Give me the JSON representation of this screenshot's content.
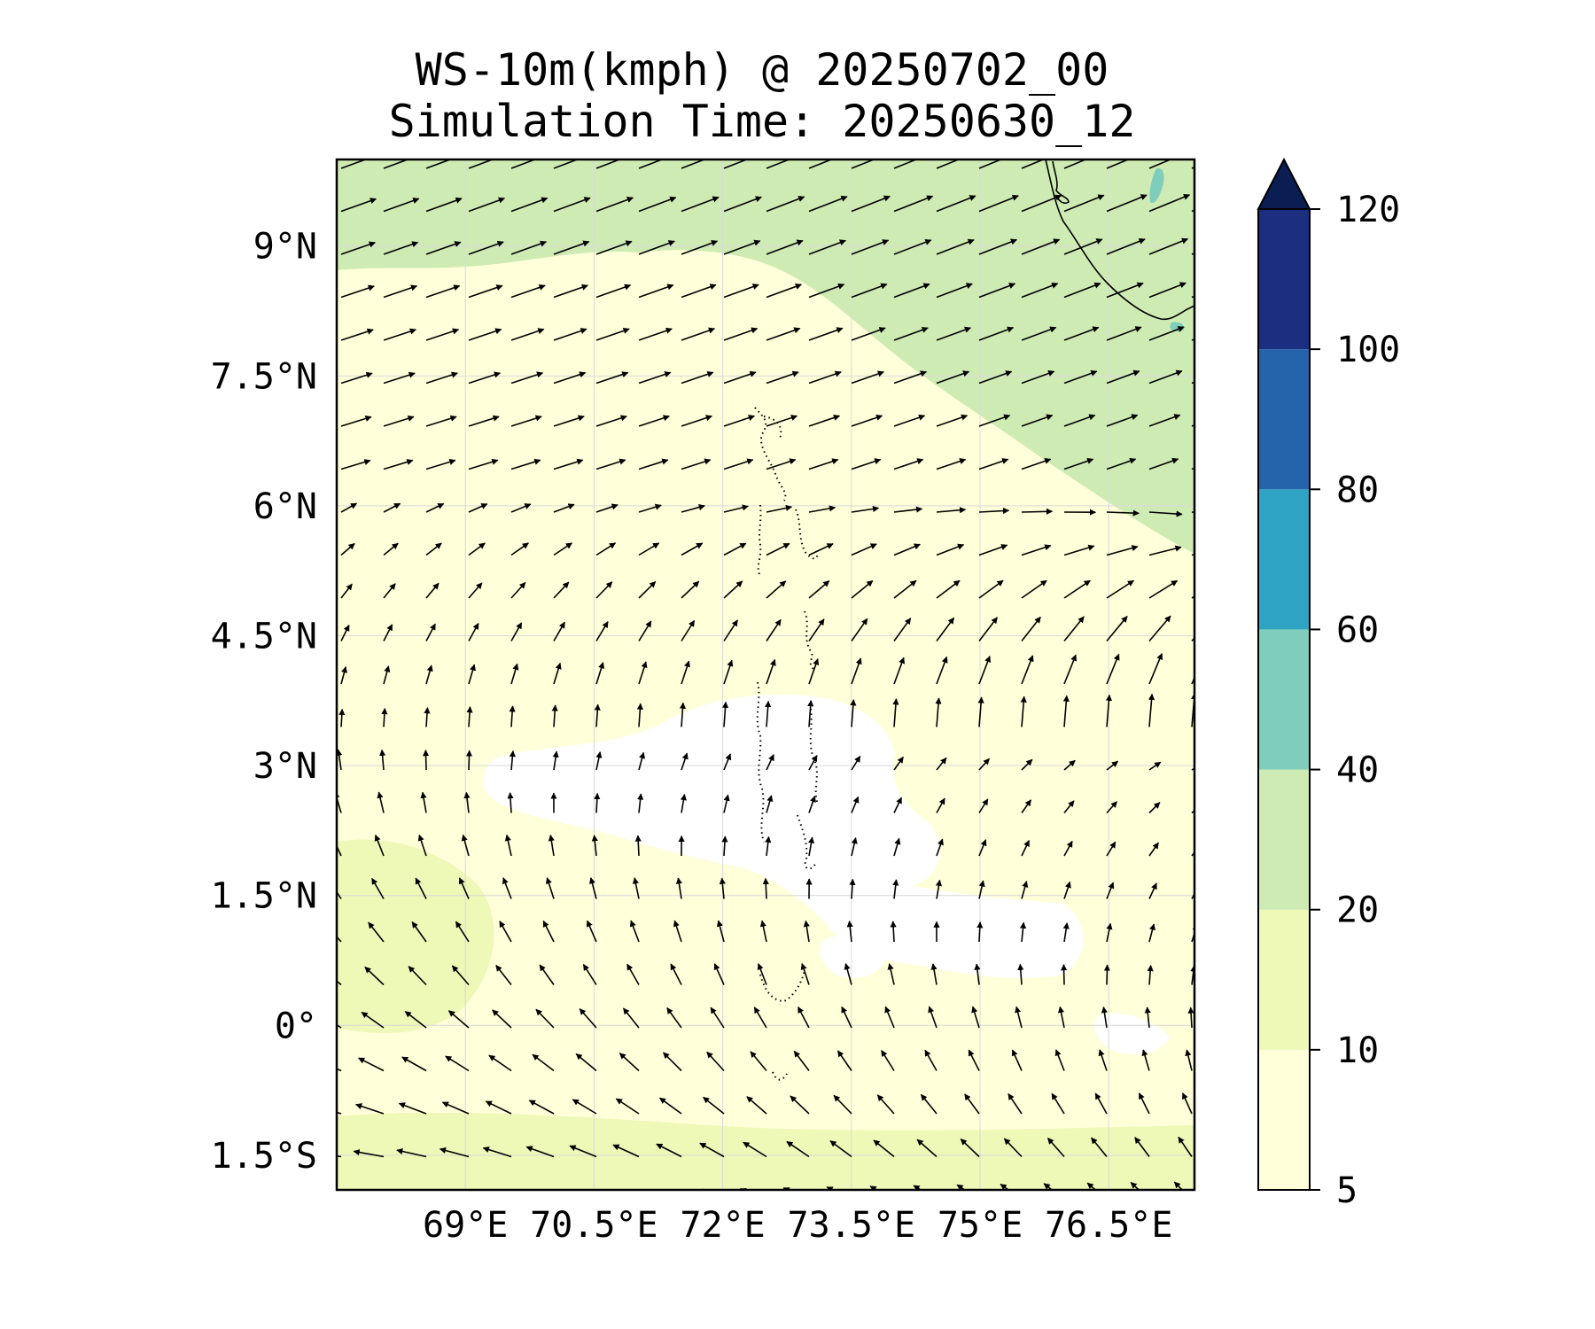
{
  "title": {
    "line1": "WS-10m(kmph) @ 20250702_00",
    "line2": "Simulation Time: 20250630_12"
  },
  "map": {
    "lon_range": [
      67.5,
      77.5
    ],
    "lat_range": [
      -1.9,
      10.0
    ],
    "lon_ticks": [
      {
        "value": 69,
        "label": "69°E"
      },
      {
        "value": 70.5,
        "label": "70.5°E"
      },
      {
        "value": 72,
        "label": "72°E"
      },
      {
        "value": 73.5,
        "label": "73.5°E"
      },
      {
        "value": 75,
        "label": "75°E"
      },
      {
        "value": 76.5,
        "label": "76.5°E"
      }
    ],
    "lat_ticks": [
      {
        "value": 9,
        "label": "9°N"
      },
      {
        "value": 7.5,
        "label": "7.5°N"
      },
      {
        "value": 6,
        "label": "6°N"
      },
      {
        "value": 4.5,
        "label": "4.5°N"
      },
      {
        "value": 3,
        "label": "3°N"
      },
      {
        "value": 1.5,
        "label": "1.5°N"
      },
      {
        "value": 0,
        "label": "0°"
      },
      {
        "value": -1.5,
        "label": "1.5°S"
      }
    ],
    "gridlines": true
  },
  "colorbar": {
    "levels": [
      5,
      10,
      20,
      40,
      60,
      80,
      100,
      120
    ],
    "labels": [
      "5",
      "10",
      "20",
      "40",
      "60",
      "80",
      "100",
      "120"
    ],
    "colors": [
      "#ffffd9",
      "#eef8b7",
      "#cfebb4",
      "#7fcdbb",
      "#2ea3c4",
      "#2564ab",
      "#1b2e7f"
    ],
    "extend_color": "#0b1e53",
    "extend": "max"
  },
  "field_colors": {
    "calm": "#ffffff",
    "light": "#ffffd9",
    "moderate": "#eef8b7",
    "strong": "#cfebb4",
    "gust": "#7fcdbb"
  }
}
